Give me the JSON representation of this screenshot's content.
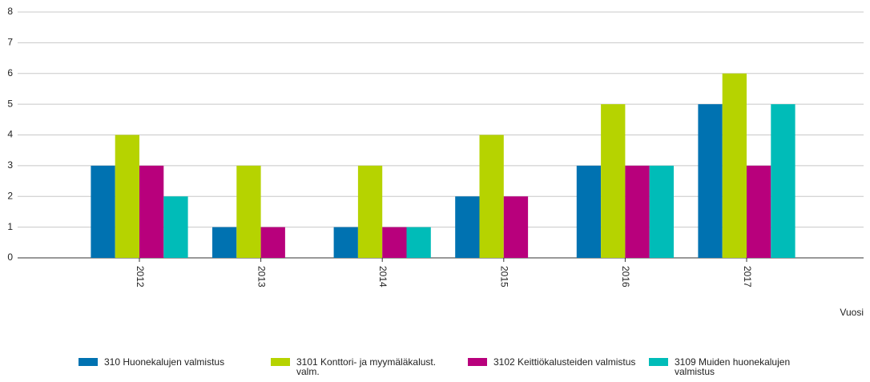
{
  "chart_data": {
    "type": "bar",
    "x_label": "Vuosi",
    "categories": [
      "2012",
      "2013",
      "2014",
      "2015",
      "2016",
      "2017"
    ],
    "series": [
      {
        "name": "310 Huonekalujen valmistus",
        "color": "#0072b1",
        "values": [
          3,
          1,
          1,
          2,
          3,
          5
        ]
      },
      {
        "name": "3101 Konttori- ja myymäläkalust. valm.",
        "color": "#b6d300",
        "values": [
          4,
          3,
          3,
          4,
          5,
          6
        ]
      },
      {
        "name": "3102 Keittiökalusteiden valmistus",
        "color": "#b8007c",
        "values": [
          3,
          1,
          1,
          2,
          3,
          3
        ]
      },
      {
        "name": "3109 Muiden huonekalujen valmistus",
        "color": "#00bcb8",
        "values": [
          2,
          null,
          1,
          null,
          3,
          5
        ]
      }
    ],
    "ylim": [
      0,
      8
    ],
    "yticks": [
      0,
      1,
      2,
      3,
      4,
      5,
      6,
      7,
      8
    ],
    "grid": true,
    "legend": "bottom"
  }
}
